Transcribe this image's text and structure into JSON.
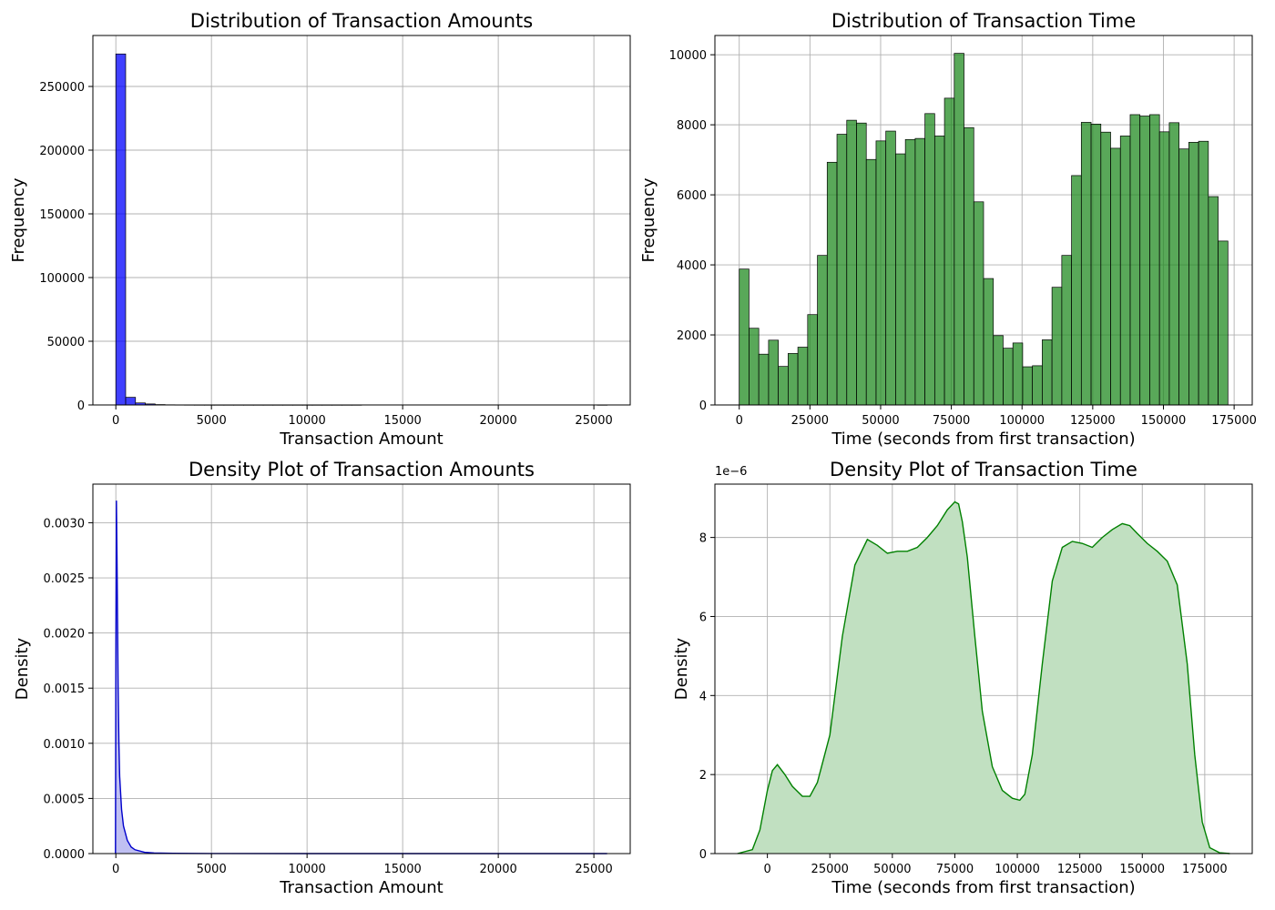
{
  "chart_data": [
    {
      "type": "bar",
      "title": "Distribution of Transaction Amounts",
      "xlabel": "Transaction Amount",
      "ylabel": "Frequency",
      "xlim": [
        -1200,
        26900
      ],
      "ylim": [
        0,
        290000
      ],
      "xticks": [
        0,
        5000,
        10000,
        15000,
        20000,
        25000
      ],
      "yticks": [
        0,
        50000,
        100000,
        150000,
        200000,
        250000
      ],
      "ytick_labels": [
        "0",
        "50000",
        "100000",
        "150000",
        "200000",
        "250000"
      ],
      "grid": true,
      "color": "#0000ff",
      "bin_width": 513.9,
      "bin_start": 0,
      "values": [
        275500,
        6000,
        1600,
        800,
        300,
        150,
        80,
        40,
        20,
        15,
        10,
        8,
        6,
        5,
        4,
        3,
        3,
        2,
        2,
        1,
        1,
        1,
        1,
        1,
        1,
        0,
        0,
        0,
        0,
        0,
        0,
        0,
        0,
        0,
        0,
        0,
        0,
        0,
        0,
        0,
        0,
        0,
        0,
        0,
        0,
        0,
        0,
        0,
        0,
        1
      ]
    },
    {
      "type": "bar",
      "title": "Distribution of Transaction Time",
      "xlabel": "Time (seconds from first transaction)",
      "ylabel": "Frequency",
      "xlim": [
        -8600,
        181400
      ],
      "ylim": [
        0,
        10550
      ],
      "xticks": [
        0,
        25000,
        50000,
        75000,
        100000,
        125000,
        150000,
        175000
      ],
      "yticks": [
        0,
        2000,
        4000,
        6000,
        8000,
        10000
      ],
      "ytick_labels": [
        "0",
        "2000",
        "4000",
        "6000",
        "8000",
        "10000"
      ],
      "grid": true,
      "color": "#228b22",
      "bin_width": 3456,
      "bin_start": 0,
      "values": [
        3880,
        2190,
        1450,
        1850,
        1100,
        1470,
        1650,
        2580,
        4270,
        6930,
        7730,
        8130,
        8050,
        7010,
        7540,
        7820,
        7170,
        7580,
        7610,
        8320,
        7680,
        8760,
        10040,
        7920,
        5800,
        3610,
        1980,
        1620,
        1770,
        1090,
        1120,
        1860,
        3360,
        4270,
        6550,
        8070,
        8020,
        7790,
        7330,
        7680,
        8290,
        8250,
        8290,
        7800,
        8060,
        7310,
        7500,
        7530,
        5950,
        4680
      ]
    },
    {
      "type": "area",
      "title": "Density Plot of Transaction Amounts",
      "xlabel": "Transaction Amount",
      "ylabel": "Density",
      "xlim": [
        -1200,
        26900
      ],
      "ylim": [
        0,
        0.00335
      ],
      "xticks": [
        0,
        5000,
        10000,
        15000,
        20000,
        25000
      ],
      "yticks": [
        0,
        0.0005,
        0.001,
        0.0015,
        0.002,
        0.0025,
        0.003
      ],
      "ytick_labels": [
        "0.0000",
        "0.0005",
        "0.0010",
        "0.0015",
        "0.0020",
        "0.0025",
        "0.0030"
      ],
      "grid": true,
      "color": "#0000cc",
      "x": [
        -20,
        0,
        30,
        60,
        90,
        120,
        160,
        200,
        300,
        400,
        600,
        800,
        1000,
        1500,
        2000,
        3000,
        5000,
        10000,
        15000,
        20000,
        25691
      ],
      "y": [
        0.0,
        0.0017,
        0.0032,
        0.0027,
        0.0021,
        0.0015,
        0.001,
        0.0007,
        0.0004,
        0.00025,
        0.00012,
        6e-05,
        3.5e-05,
        1.2e-05,
        6e-06,
        2e-06,
        6e-07,
        1e-07,
        5e-08,
        5e-08,
        0.0
      ]
    },
    {
      "type": "area",
      "title": "Density Plot of Transaction Time",
      "xlabel": "Time (seconds from first transaction)",
      "ylabel": "Density",
      "scale_label": "1e−6",
      "xlim": [
        -21000,
        194000
      ],
      "ylim": [
        0,
        9.35
      ],
      "xticks": [
        0,
        25000,
        50000,
        75000,
        100000,
        125000,
        150000,
        175000
      ],
      "yticks": [
        0,
        2,
        4,
        6,
        8
      ],
      "ytick_labels": [
        "0",
        "2",
        "4",
        "6",
        "8"
      ],
      "grid": true,
      "color": "#008000",
      "fill_color": "#c1e0c1",
      "x": [
        -12000,
        -6000,
        -3000,
        0,
        2000,
        4000,
        7000,
        10000,
        14000,
        17000,
        20000,
        25000,
        30000,
        35000,
        40000,
        44000,
        48000,
        52000,
        56000,
        60000,
        64000,
        68000,
        72000,
        75000,
        76500,
        78000,
        80000,
        83000,
        86000,
        90000,
        94000,
        98000,
        101000,
        103000,
        106000,
        110000,
        114000,
        118000,
        122000,
        126000,
        130000,
        134000,
        138000,
        142000,
        145000,
        148000,
        152000,
        156000,
        160000,
        164000,
        168000,
        171000,
        174000,
        177000,
        181000,
        185000
      ],
      "y": [
        0.0,
        0.1,
        0.6,
        1.6,
        2.1,
        2.25,
        2.0,
        1.7,
        1.45,
        1.45,
        1.8,
        3.0,
        5.5,
        7.3,
        7.95,
        7.8,
        7.6,
        7.65,
        7.65,
        7.75,
        8.0,
        8.3,
        8.7,
        8.9,
        8.85,
        8.4,
        7.5,
        5.5,
        3.6,
        2.2,
        1.6,
        1.4,
        1.35,
        1.5,
        2.5,
        4.8,
        6.9,
        7.75,
        7.9,
        7.85,
        7.75,
        8.0,
        8.2,
        8.35,
        8.3,
        8.1,
        7.85,
        7.65,
        7.4,
        6.8,
        4.8,
        2.5,
        0.8,
        0.15,
        0.02,
        0.0
      ]
    }
  ]
}
